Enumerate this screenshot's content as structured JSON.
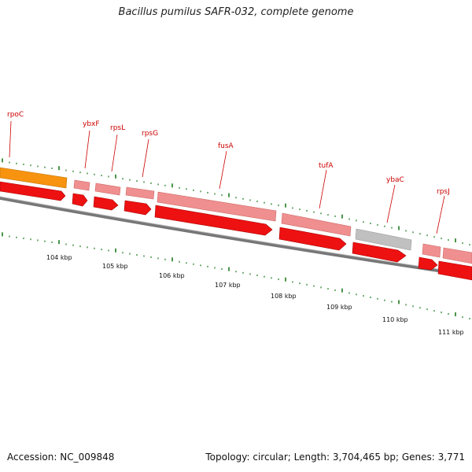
{
  "title": "Bacillus pumilus SAFR-032, complete genome",
  "footer": {
    "accession": "Accession: NC_009848",
    "summary": "Topology: circular; Length: 3,704,465 bp; Genes: 3,771"
  },
  "colors": {
    "gene_forward_light": "#f08f8f",
    "gene_dark": "#ee1111",
    "gene_orange": "#f7930f",
    "gene_gray": "#bdbdbd",
    "backbone": "#777777",
    "tick": "#1c7a1c",
    "label": "#cc0000"
  },
  "genes": [
    {
      "name": "rpoC"
    },
    {
      "name": "ybxF"
    },
    {
      "name": "rpsL"
    },
    {
      "name": "rpsG"
    },
    {
      "name": "fusA"
    },
    {
      "name": "tufA"
    },
    {
      "name": "ybaC"
    },
    {
      "name": "rpsJ"
    }
  ],
  "scale_labels": [
    "104 kbp",
    "105 kbp",
    "106 kbp",
    "107 kbp",
    "108 kbp",
    "109 kbp",
    "110 kbp",
    "111 kbp"
  ]
}
